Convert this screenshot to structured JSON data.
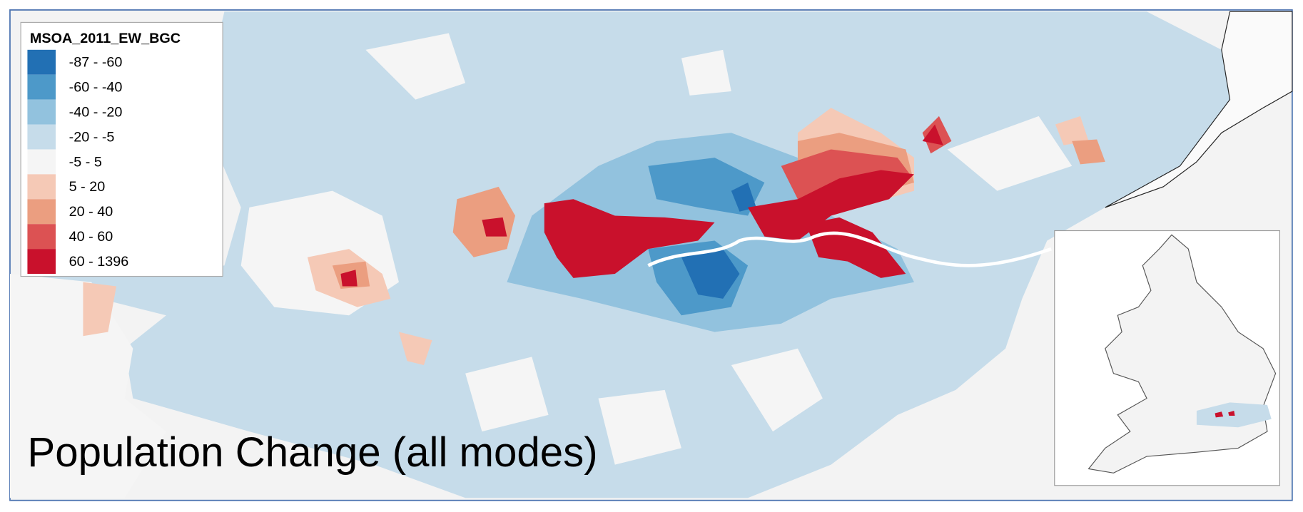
{
  "legend": {
    "title": "MSOA_2011_EW_BGC",
    "items": [
      {
        "label": "-87 - -60",
        "color": "#2270b4"
      },
      {
        "label": "-60 - -40",
        "color": "#4d99c9"
      },
      {
        "label": "-40 - -20",
        "color": "#92c2de"
      },
      {
        "label": "-20 - -5",
        "color": "#c6dcea"
      },
      {
        "label": "-5 - 5",
        "color": "#f5f5f5"
      },
      {
        "label": "5 - 20",
        "color": "#f5c9b6"
      },
      {
        "label": "20 - 40",
        "color": "#eb9e80"
      },
      {
        "label": "40 - 60",
        "color": "#dc5253"
      },
      {
        "label": "60 - 1396",
        "color": "#c9112c"
      }
    ]
  },
  "title": "Population Change (all modes)"
}
